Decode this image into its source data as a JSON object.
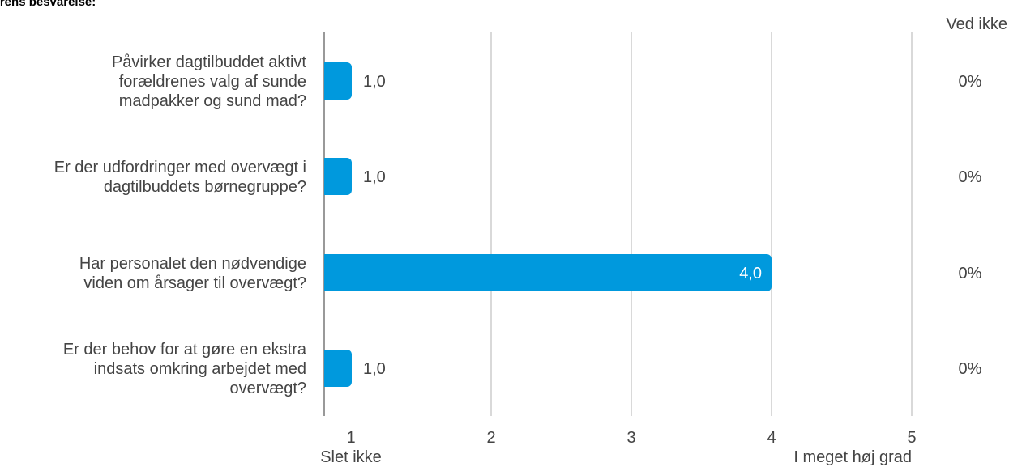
{
  "chart_data": {
    "type": "bar",
    "orientation": "horizontal",
    "title": "ederens besvarelse:",
    "categories": [
      [
        "Påvirker dagtilbuddet aktivt",
        "forældrenes valg af sunde",
        "madpakker og sund mad?"
      ],
      [
        "Er der udfordringer med overvægt i",
        "dagtilbuddets børnegruppe?"
      ],
      [
        "Har personalet den nødvendige",
        "viden om årsager til overvægt?"
      ],
      [
        "Er der behov for at gøre en ekstra",
        "indsats omkring arbejdet med",
        "overvægt?"
      ]
    ],
    "values": [
      1.0,
      1.0,
      4.0,
      1.0
    ],
    "value_labels": [
      "1,0",
      "1,0",
      "4,0",
      "1,0"
    ],
    "xlim": [
      1,
      5
    ],
    "ticks": [
      "1",
      "2",
      "3",
      "4",
      "5"
    ],
    "axis_end_labels": {
      "left": "Slet ikke",
      "right": "I meget høj grad"
    },
    "side_column": {
      "header": "Ved ikke",
      "values": [
        "0%",
        "0%",
        "0%",
        "0%"
      ]
    },
    "colors": {
      "bar": "#0099DD",
      "grid": "#b3b3b3",
      "axis": "#999999",
      "text": "#444444",
      "label_inside": "#ffffff"
    },
    "grid": true
  }
}
